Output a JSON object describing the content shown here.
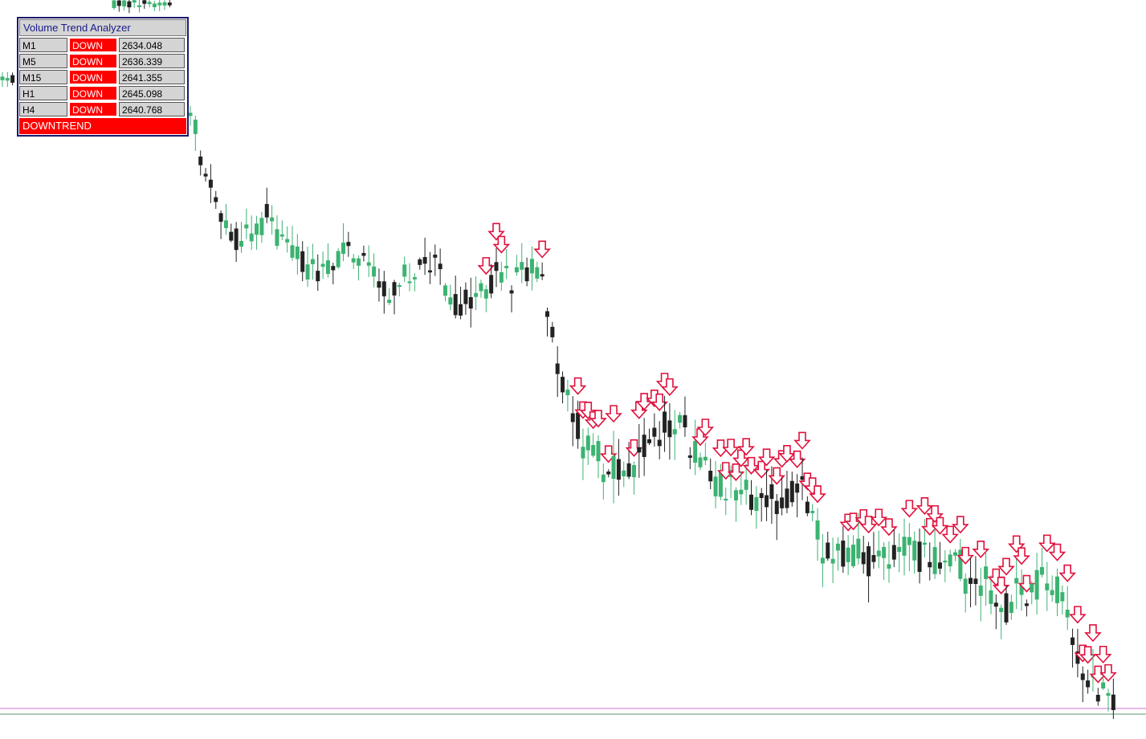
{
  "panel": {
    "title": "Volume Trend Analyzer",
    "rows": [
      [
        "M1",
        "DOWN",
        2634.048
      ],
      [
        "M5",
        "DOWN",
        2636.339
      ],
      [
        "M15",
        "DOWN",
        2641.355
      ],
      [
        "H1",
        "DOWN",
        2645.098
      ],
      [
        "H4",
        "DOWN",
        2640.768
      ]
    ],
    "status": "DOWNTREND"
  }
}
